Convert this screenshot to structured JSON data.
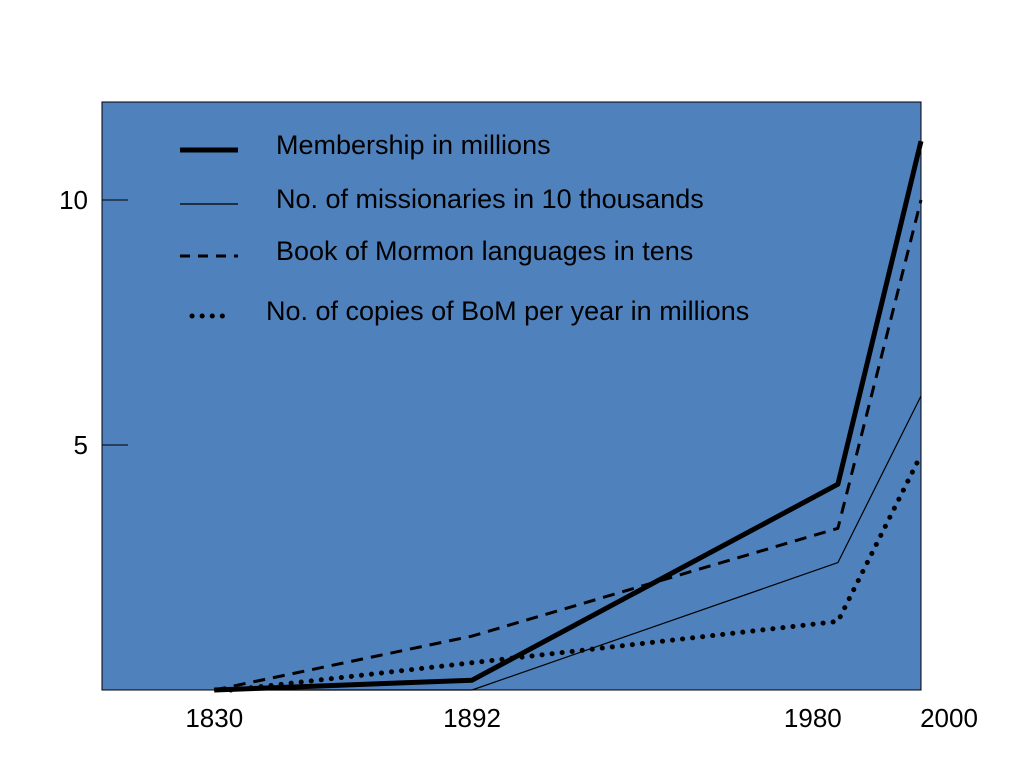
{
  "colors": {
    "plot_background": "#4f81bd",
    "axis": "#000000",
    "lines": "#000000"
  },
  "chart_data": {
    "type": "line",
    "title": "",
    "xlabel": "",
    "ylabel": "",
    "x_ticks": [
      1830,
      1892,
      1980,
      2000
    ],
    "x_tick_labels": [
      "1830",
      "1892",
      "1980",
      "2000"
    ],
    "y_ticks": [
      5,
      10
    ],
    "y_tick_labels": [
      "5",
      "10"
    ],
    "xlim": [
      1803,
      2000
    ],
    "ylim": [
      0,
      12
    ],
    "grid": false,
    "legend_position": "top",
    "series": [
      {
        "name": "Membership in millions",
        "style": "thick-solid",
        "x": [
          1830,
          1892,
          1980,
          2000
        ],
        "values": [
          0,
          0.2,
          4.2,
          11.2
        ]
      },
      {
        "name": "No. of missionaries in 10 thousands",
        "style": "thin-solid",
        "x": [
          1830,
          1892,
          1980,
          2000
        ],
        "values": [
          0,
          0,
          2.6,
          6
        ]
      },
      {
        "name": "Book of Mormon languages in tens",
        "style": "dashed",
        "x": [
          1830,
          1892,
          1980,
          2000
        ],
        "values": [
          0,
          1.1,
          3.3,
          10
        ]
      },
      {
        "name": "No. of copies of BoM per year in millions",
        "style": "dotted",
        "x": [
          1834,
          1980,
          2000
        ],
        "values": [
          0,
          1.4,
          4.8
        ]
      }
    ]
  }
}
